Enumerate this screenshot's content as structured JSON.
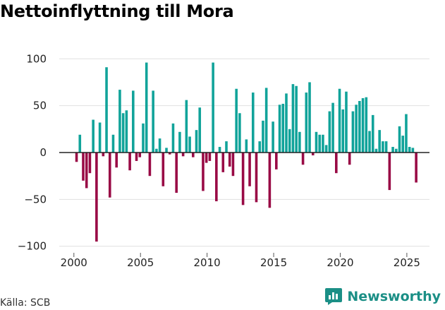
{
  "title": "Nettoinflyttning till Mora",
  "source": "Källa: SCB",
  "brand": {
    "name": "Newsworthy"
  },
  "colors": {
    "positive": "#11a39a",
    "negative": "#990a45",
    "grid": "#e0e0e0",
    "zero": "#222222",
    "brand": "#1b8f86"
  },
  "chart_data": {
    "type": "bar",
    "title": "Nettoinflyttning till Mora",
    "xlabel": "",
    "ylabel": "",
    "xlim": [
      1998.9,
      2026.7
    ],
    "ylim": [
      -110,
      110
    ],
    "xticks": [
      2000,
      2005,
      2010,
      2015,
      2020,
      2025
    ],
    "xtick_labels": [
      "2000",
      "2005",
      "2010",
      "2015",
      "2020",
      "2025"
    ],
    "yticks": [
      100,
      50,
      0,
      -50,
      -100
    ],
    "ytick_labels": [
      "100",
      "50",
      "0",
      "−50",
      "−100"
    ],
    "bar_width": 0.19,
    "x": [
      2000.2,
      2000.45,
      2000.7,
      2000.95,
      2001.2,
      2001.45,
      2001.7,
      2001.95,
      2002.2,
      2002.45,
      2002.7,
      2002.95,
      2003.2,
      2003.45,
      2003.7,
      2003.95,
      2004.2,
      2004.45,
      2004.7,
      2004.95,
      2005.2,
      2005.45,
      2005.7,
      2005.95,
      2006.2,
      2006.45,
      2006.7,
      2006.95,
      2007.2,
      2007.45,
      2007.7,
      2007.95,
      2008.2,
      2008.45,
      2008.7,
      2008.95,
      2009.2,
      2009.45,
      2009.7,
      2009.95,
      2010.2,
      2010.45,
      2010.7,
      2010.95,
      2011.2,
      2011.45,
      2011.7,
      2011.95,
      2012.2,
      2012.45,
      2012.7,
      2012.95,
      2013.2,
      2013.45,
      2013.7,
      2013.95,
      2014.2,
      2014.45,
      2014.7,
      2014.95,
      2015.2,
      2015.45,
      2015.7,
      2015.95,
      2016.2,
      2016.45,
      2016.7,
      2016.95,
      2017.2,
      2017.45,
      2017.7,
      2017.95,
      2018.2,
      2018.45,
      2018.7,
      2018.95,
      2019.2,
      2019.45,
      2019.7,
      2019.95,
      2020.2,
      2020.45,
      2020.7,
      2020.95,
      2021.2,
      2021.45,
      2021.7,
      2021.95,
      2022.2,
      2022.45,
      2022.7,
      2022.95,
      2023.2,
      2023.45,
      2023.7,
      2023.95,
      2024.2,
      2024.45,
      2024.7,
      2024.95,
      2025.2,
      2025.45,
      2025.7
    ],
    "values": [
      -10,
      19,
      -30,
      -38,
      -22,
      35,
      -95,
      32,
      -4,
      91,
      -48,
      19,
      -16,
      67,
      42,
      45,
      -19,
      66,
      -9,
      -5,
      31,
      96,
      -25,
      66,
      4,
      15,
      -36,
      5,
      -2,
      31,
      -43,
      22,
      -4,
      56,
      17,
      -5,
      24,
      48,
      -41,
      -11,
      -9,
      96,
      -52,
      6,
      -21,
      12,
      -15,
      -25,
      68,
      42,
      -56,
      14,
      -36,
      64,
      -53,
      12,
      34,
      69,
      -59,
      33,
      -18,
      51,
      52,
      63,
      25,
      73,
      71,
      22,
      -13,
      64,
      75,
      -3,
      22,
      19,
      19,
      8,
      44,
      53,
      -22,
      68,
      46,
      65,
      -13,
      44,
      51,
      55,
      58,
      59,
      23,
      40,
      4,
      24,
      12,
      12,
      -40,
      6,
      4,
      28,
      18,
      41,
      6,
      5,
      -32
    ]
  }
}
